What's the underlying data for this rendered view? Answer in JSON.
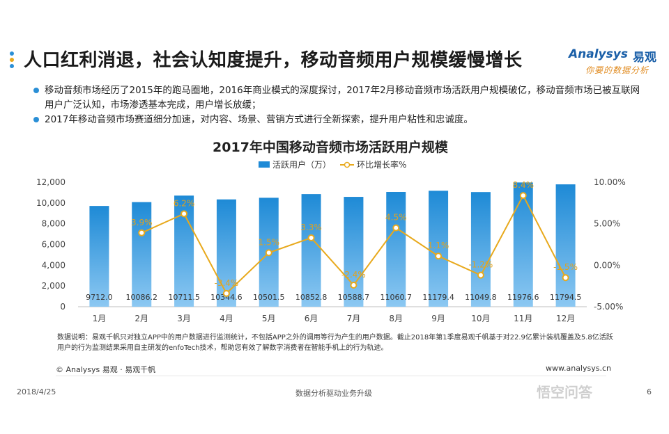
{
  "slide": {
    "title": "人口红利消退，社会认知度提升，移动音频用户规模缓慢增长",
    "bullets": [
      "移动音频市场经历了2015年的跑马圈地，2016年商业模式的深度探讨，2017年2月移动音频市场活跃用户规模破亿，移动音频市场已被互联网用户广泛认知，市场渗透基本完成，用户增长放缓；",
      "2017年移动音频市场赛道细分加速，对内容、场景、营销方式进行全新探索，提升用户粘性和忠诚度。"
    ],
    "note": "数据说明：易观千帆只对独立APP中的用户数据进行监测统计，不包括APP之外的调用等行为产生的用户数据。截止2018年第1季度易观千帆基于对22.9亿累计装机覆盖及5.8亿活跃用户的行为监测结果采用自主研发的enfoTech技术，帮助您有效了解数字消费者在智能手机上的行为轨迹。",
    "copyright": "© Analysys 易观 · 易观千帆",
    "website": "www.analysys.cn",
    "date": "2018/4/25",
    "footer_slogan": "数据分析驱动业务升级",
    "page_number": "6",
    "watermark_badge": "悟空问答"
  },
  "logo": {
    "name_en": "Analysys",
    "name_cn": "易观",
    "slogan": "你要的数据分析"
  },
  "colors": {
    "bar": "#1e8ad6",
    "bar_light": "#8cc8f2",
    "line": "#e8a91c",
    "accent_dots": [
      "#2a8fd6",
      "#e8a91c",
      "#2a8fd6"
    ]
  },
  "chart_data": {
    "type": "bar",
    "title": "2017年中国移动音频市场活跃用户规模",
    "categories": [
      "1月",
      "2月",
      "3月",
      "4月",
      "5月",
      "6月",
      "7月",
      "8月",
      "9月",
      "10月",
      "11月",
      "12月"
    ],
    "series": [
      {
        "name": "活跃用户（万）",
        "type": "bar",
        "axis": "left",
        "values": [
          9712.0,
          10086.2,
          10711.5,
          10344.6,
          10501.5,
          10852.8,
          10588.7,
          11060.7,
          11179.4,
          11049.8,
          11976.6,
          11794.5
        ],
        "labels": [
          "9712.0",
          "10086.2",
          "10711.5",
          "10344.6",
          "10501.5",
          "10852.8",
          "10588.7",
          "11060.7",
          "11179.4",
          "11049.8",
          "11976.6",
          "11794.5"
        ]
      },
      {
        "name": "环比增长率%",
        "type": "line",
        "axis": "right",
        "values": [
          null,
          3.9,
          6.2,
          -3.4,
          1.5,
          3.3,
          -2.4,
          4.5,
          1.1,
          -1.2,
          8.4,
          -1.5
        ],
        "labels": [
          "",
          "3.9%",
          "6.2%",
          "-3.4%",
          "1.5%",
          "3.3%",
          "-2.4%",
          "4.5%",
          "1.1%",
          "-1.2%",
          "8.4%",
          "-1.5%"
        ]
      }
    ],
    "y_left": {
      "min": 0,
      "max": 12000,
      "ticks": [
        "0",
        "2,000",
        "4,000",
        "6,000",
        "8,000",
        "10,000",
        "12,000"
      ]
    },
    "y_right": {
      "min": -5,
      "max": 10,
      "ticks": [
        "-5.00%",
        "0.00%",
        "5.00%",
        "10.00%"
      ]
    },
    "legend_position": "top",
    "grid": false
  }
}
